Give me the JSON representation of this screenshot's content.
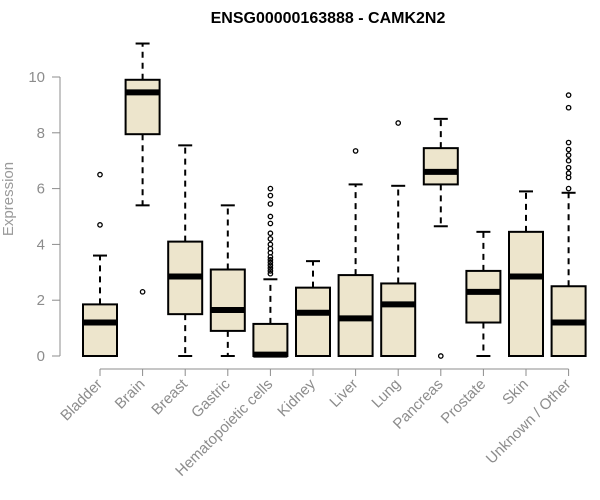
{
  "colors": {
    "box_fill": "#ede5cc",
    "box_stroke": "#000000",
    "axis": "#8c8c8c"
  },
  "chart_data": {
    "type": "box",
    "title": "ENSG00000163888 - CAMK2N2",
    "ylabel": "Expression",
    "xlabel": "",
    "ylim": [
      0,
      11.5
    ],
    "yticks": [
      0,
      2,
      4,
      6,
      8,
      10
    ],
    "grid": false,
    "categories": [
      "Bladder",
      "Brain",
      "Breast",
      "Gastric",
      "Hematopoietic cells",
      "Kidney",
      "Liver",
      "Lung",
      "Pancreas",
      "Prostate",
      "Skin",
      "Unknown / Other"
    ],
    "boxes": [
      {
        "category": "Bladder",
        "whisker_low": 0,
        "q1": 0,
        "median": 1.2,
        "q3": 1.85,
        "whisker_high": 3.6,
        "outliers": [
          4.7,
          6.5
        ]
      },
      {
        "category": "Brain",
        "whisker_low": 5.4,
        "q1": 7.95,
        "median": 9.45,
        "q3": 9.9,
        "whisker_high": 11.2,
        "outliers": [
          2.3
        ]
      },
      {
        "category": "Breast",
        "whisker_low": 0,
        "q1": 1.5,
        "median": 2.85,
        "q3": 4.1,
        "whisker_high": 7.55,
        "outliers": []
      },
      {
        "category": "Gastric",
        "whisker_low": 0,
        "q1": 0.9,
        "median": 1.65,
        "q3": 3.1,
        "whisker_high": 5.4,
        "outliers": []
      },
      {
        "category": "Hematopoietic cells",
        "whisker_low": 0,
        "q1": 0,
        "median": 0.05,
        "q3": 1.15,
        "whisker_high": 2.75,
        "outliers": [
          2.95,
          3.05,
          3.15,
          3.25,
          3.35,
          3.45,
          3.55,
          3.7,
          3.85,
          4.0,
          4.2,
          4.4,
          4.75,
          5.0,
          5.45,
          5.75,
          6.0
        ]
      },
      {
        "category": "Kidney",
        "whisker_low": 0,
        "q1": 0,
        "median": 1.55,
        "q3": 2.45,
        "whisker_high": 3.4,
        "outliers": []
      },
      {
        "category": "Liver",
        "whisker_low": 0,
        "q1": 0,
        "median": 1.35,
        "q3": 2.9,
        "whisker_high": 6.15,
        "outliers": [
          7.35
        ]
      },
      {
        "category": "Lung",
        "whisker_low": 0,
        "q1": 0,
        "median": 1.85,
        "q3": 2.6,
        "whisker_high": 6.1,
        "outliers": [
          8.35
        ]
      },
      {
        "category": "Pancreas",
        "whisker_low": 4.65,
        "q1": 6.15,
        "median": 6.6,
        "q3": 7.45,
        "whisker_high": 8.5,
        "outliers": [
          0
        ]
      },
      {
        "category": "Prostate",
        "whisker_low": 0,
        "q1": 1.2,
        "median": 2.3,
        "q3": 3.05,
        "whisker_high": 4.45,
        "outliers": []
      },
      {
        "category": "Skin",
        "whisker_low": 0,
        "q1": 0,
        "median": 2.85,
        "q3": 4.45,
        "whisker_high": 5.9,
        "outliers": []
      },
      {
        "category": "Unknown / Other",
        "whisker_low": 0,
        "q1": 0,
        "median": 1.2,
        "q3": 2.5,
        "whisker_high": 5.85,
        "outliers": [
          6.0,
          6.4,
          6.55,
          6.75,
          7.0,
          7.2,
          7.4,
          7.65,
          8.9,
          9.35
        ]
      }
    ]
  }
}
